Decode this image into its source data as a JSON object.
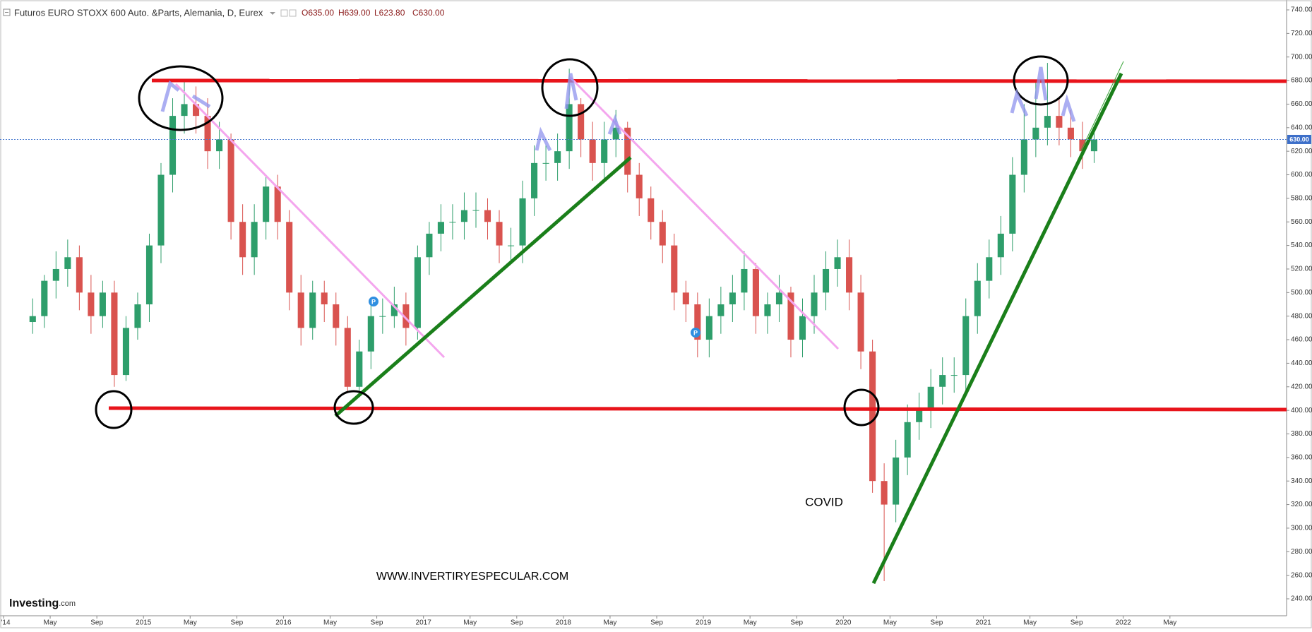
{
  "chart_data": {
    "type": "candlestick",
    "title": "Futuros EURO STOXX 600 Auto. &Parts, Alemania, D, Eurex",
    "ohlc_labels": [
      "O635.00",
      "H639.00",
      "L623.80",
      "C630.00"
    ],
    "x": [
      "2014-03",
      "2014-04",
      "2014-05",
      "2014-06",
      "2014-07",
      "2014-08",
      "2014-09",
      "2014-10",
      "2014-11",
      "2014-12",
      "2015-01",
      "2015-02",
      "2015-03",
      "2015-04",
      "2015-05",
      "2015-06",
      "2015-07",
      "2015-08",
      "2015-09",
      "2015-10",
      "2015-11",
      "2015-12",
      "2016-01",
      "2016-02",
      "2016-03",
      "2016-04",
      "2016-05",
      "2016-06",
      "2016-07",
      "2016-08",
      "2016-09",
      "2016-10",
      "2016-11",
      "2016-12",
      "2017-01",
      "2017-02",
      "2017-03",
      "2017-04",
      "2017-05",
      "2017-06",
      "2017-07",
      "2017-08",
      "2017-09",
      "2017-10",
      "2017-11",
      "2017-12",
      "2018-01",
      "2018-02",
      "2018-03",
      "2018-04",
      "2018-05",
      "2018-06",
      "2018-07",
      "2018-08",
      "2018-09",
      "2018-10",
      "2018-11",
      "2018-12",
      "2019-01",
      "2019-02",
      "2019-03",
      "2019-04",
      "2019-05",
      "2019-06",
      "2019-07",
      "2019-08",
      "2019-09",
      "2019-10",
      "2019-11",
      "2019-12",
      "2020-01",
      "2020-02",
      "2020-03",
      "2020-04",
      "2020-05",
      "2020-06",
      "2020-07",
      "2020-08",
      "2020-09",
      "2020-10",
      "2020-11",
      "2020-12",
      "2021-01",
      "2021-02",
      "2021-03",
      "2021-04",
      "2021-05",
      "2021-06",
      "2021-07",
      "2021-08",
      "2021-09",
      "2021-10"
    ],
    "open": [
      475,
      480,
      510,
      520,
      530,
      500,
      480,
      500,
      430,
      470,
      490,
      540,
      600,
      650,
      660,
      650,
      620,
      630,
      560,
      530,
      560,
      590,
      560,
      500,
      470,
      500,
      490,
      470,
      420,
      450,
      480,
      480,
      490,
      470,
      530,
      550,
      560,
      560,
      570,
      570,
      560,
      540,
      540,
      580,
      610,
      610,
      620,
      660,
      630,
      610,
      630,
      640,
      600,
      580,
      560,
      540,
      500,
      490,
      460,
      480,
      490,
      500,
      520,
      480,
      490,
      500,
      460,
      480,
      500,
      520,
      530,
      500,
      450,
      340,
      320,
      360,
      390,
      400,
      420,
      430,
      430,
      480,
      510,
      530,
      550,
      600,
      630,
      640,
      650,
      640,
      630,
      620
    ],
    "high": [
      495,
      515,
      535,
      545,
      540,
      515,
      510,
      510,
      480,
      500,
      550,
      610,
      665,
      680,
      675,
      665,
      645,
      635,
      575,
      575,
      600,
      600,
      570,
      515,
      510,
      510,
      500,
      480,
      460,
      490,
      495,
      505,
      500,
      540,
      560,
      575,
      575,
      585,
      585,
      580,
      570,
      555,
      595,
      625,
      625,
      635,
      690,
      665,
      645,
      645,
      655,
      645,
      610,
      590,
      570,
      550,
      510,
      500,
      495,
      505,
      515,
      535,
      525,
      500,
      515,
      505,
      495,
      515,
      535,
      545,
      545,
      515,
      460,
      355,
      375,
      405,
      415,
      435,
      445,
      445,
      495,
      525,
      545,
      565,
      615,
      660,
      680,
      695,
      665,
      655,
      645,
      640
    ],
    "low": [
      465,
      470,
      495,
      505,
      485,
      465,
      470,
      420,
      425,
      460,
      475,
      525,
      585,
      635,
      635,
      605,
      605,
      545,
      515,
      515,
      545,
      545,
      485,
      455,
      460,
      475,
      455,
      415,
      415,
      435,
      465,
      470,
      455,
      460,
      515,
      535,
      545,
      545,
      555,
      545,
      525,
      525,
      525,
      565,
      595,
      595,
      605,
      615,
      595,
      595,
      615,
      585,
      565,
      545,
      525,
      485,
      475,
      445,
      445,
      465,
      475,
      485,
      465,
      465,
      475,
      445,
      445,
      465,
      485,
      505,
      485,
      435,
      330,
      255,
      305,
      345,
      375,
      385,
      405,
      415,
      415,
      465,
      495,
      515,
      535,
      585,
      615,
      625,
      625,
      615,
      605,
      610
    ],
    "close": [
      480,
      510,
      520,
      530,
      500,
      480,
      500,
      430,
      470,
      490,
      540,
      600,
      650,
      660,
      650,
      620,
      630,
      560,
      530,
      560,
      590,
      560,
      500,
      470,
      500,
      490,
      470,
      420,
      450,
      480,
      480,
      490,
      470,
      530,
      550,
      560,
      560,
      570,
      570,
      560,
      540,
      540,
      580,
      610,
      610,
      620,
      660,
      630,
      610,
      630,
      640,
      600,
      580,
      560,
      540,
      500,
      490,
      460,
      480,
      490,
      500,
      520,
      480,
      490,
      500,
      460,
      480,
      500,
      520,
      530,
      500,
      450,
      340,
      320,
      360,
      390,
      400,
      420,
      430,
      430,
      480,
      510,
      530,
      550,
      600,
      630,
      640,
      650,
      640,
      630,
      620,
      630
    ],
    "up_color": "#2e9e6b",
    "down_color": "#d9534f",
    "xlim": [
      "2014-01",
      "2023-03"
    ],
    "xticks": [
      {
        "value": "2014-01",
        "label": "'14"
      },
      {
        "value": "2014-05",
        "label": "May"
      },
      {
        "value": "2014-09",
        "label": "Sep"
      },
      {
        "value": "2015-01",
        "label": "2015"
      },
      {
        "value": "2015-05",
        "label": "May"
      },
      {
        "value": "2015-09",
        "label": "Sep"
      },
      {
        "value": "2016-01",
        "label": "2016"
      },
      {
        "value": "2016-05",
        "label": "May"
      },
      {
        "value": "2016-09",
        "label": "Sep"
      },
      {
        "value": "2017-01",
        "label": "2017"
      },
      {
        "value": "2017-05",
        "label": "May"
      },
      {
        "value": "2017-09",
        "label": "Sep"
      },
      {
        "value": "2018-01",
        "label": "2018"
      },
      {
        "value": "2018-05",
        "label": "May"
      },
      {
        "value": "2018-09",
        "label": "Sep"
      },
      {
        "value": "2019-01",
        "label": "2019"
      },
      {
        "value": "2019-05",
        "label": "May"
      },
      {
        "value": "2019-09",
        "label": "Sep"
      },
      {
        "value": "2020-01",
        "label": "2020"
      },
      {
        "value": "2020-05",
        "label": "May"
      },
      {
        "value": "2020-09",
        "label": "Sep"
      },
      {
        "value": "2021-01",
        "label": "2021"
      },
      {
        "value": "2021-05",
        "label": "May"
      },
      {
        "value": "2021-09",
        "label": "Sep"
      },
      {
        "value": "2022-01",
        "label": "2022"
      },
      {
        "value": "2022-05",
        "label": "May"
      }
    ],
    "ylim": [
      240,
      740
    ],
    "yticks": [
      {
        "value": 240,
        "label": "240.00"
      },
      {
        "value": 260,
        "label": "260.00"
      },
      {
        "value": 280,
        "label": "280.00"
      },
      {
        "value": 300,
        "label": "300.00"
      },
      {
        "value": 320,
        "label": "320.00"
      },
      {
        "value": 340,
        "label": "340.00"
      },
      {
        "value": 360,
        "label": "360.00"
      },
      {
        "value": 380,
        "label": "380.00"
      },
      {
        "value": 400,
        "label": "400.00"
      },
      {
        "value": 420,
        "label": "420.00"
      },
      {
        "value": 440,
        "label": "440.00"
      },
      {
        "value": 460,
        "label": "460.00"
      },
      {
        "value": 480,
        "label": "480.00"
      },
      {
        "value": 500,
        "label": "500.00"
      },
      {
        "value": 520,
        "label": "520.00"
      },
      {
        "value": 540,
        "label": "540.00"
      },
      {
        "value": 560,
        "label": "560.00"
      },
      {
        "value": 580,
        "label": "580.00"
      },
      {
        "value": 600,
        "label": "600.00"
      },
      {
        "value": 620,
        "label": "620.00"
      },
      {
        "value": 640,
        "label": "640.00"
      },
      {
        "value": 660,
        "label": "660.00"
      },
      {
        "value": 680,
        "label": "680.00"
      },
      {
        "value": 700,
        "label": "700.00"
      },
      {
        "value": 720,
        "label": "720.00"
      },
      {
        "value": 740,
        "label": "740.00"
      }
    ],
    "last_price": {
      "value": 630,
      "label": "630.00"
    },
    "annotations": [
      "COVID",
      "WWW.INVERTIRYESPECULAR.COM"
    ],
    "event_markers": [
      "P",
      "P"
    ],
    "brand": [
      "Investing",
      ".com"
    ]
  }
}
